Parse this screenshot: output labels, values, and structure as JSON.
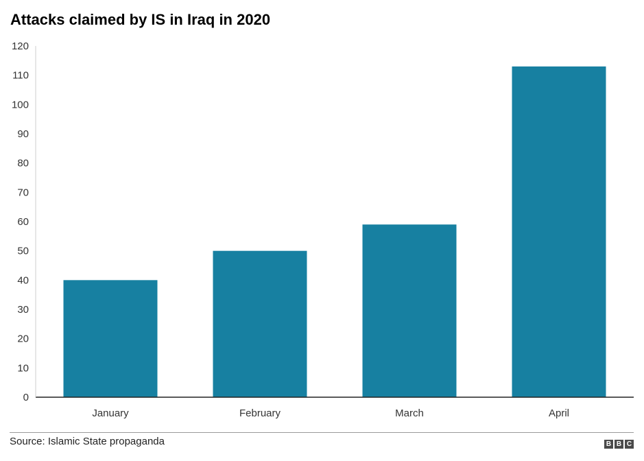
{
  "title": "Attacks claimed by IS in Iraq in 2020",
  "source": "Source: Islamic State propaganda",
  "logo": [
    "B",
    "B",
    "C"
  ],
  "colors": {
    "bar": "#1780a1",
    "axis": "#222222"
  },
  "chart_data": {
    "type": "bar",
    "title": "Attacks claimed by IS in Iraq in 2020",
    "categories": [
      "January",
      "February",
      "March",
      "April"
    ],
    "values": [
      40,
      50,
      59,
      113
    ],
    "xlabel": "",
    "ylabel": "",
    "ylim": [
      0,
      120
    ],
    "yticks": [
      0,
      10,
      20,
      30,
      40,
      50,
      60,
      70,
      80,
      90,
      100,
      110,
      120
    ],
    "grid": false,
    "legend": "none"
  }
}
